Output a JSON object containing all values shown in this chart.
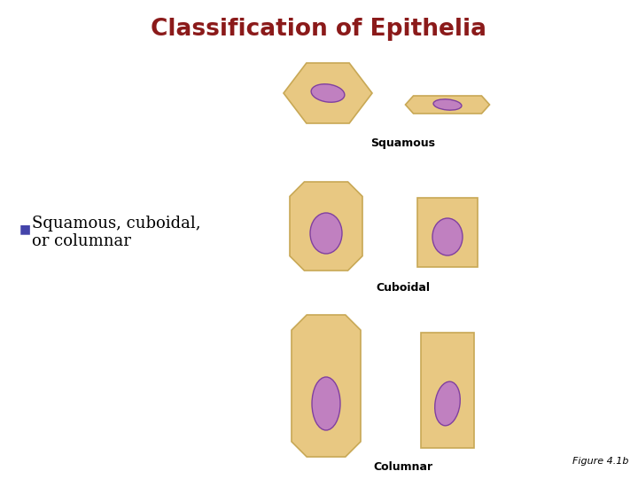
{
  "title": "Classification of Epithelia",
  "title_color": "#8B1A1A",
  "title_fontsize": 19,
  "bg_color": "#FFFFFF",
  "cell_fill": "#E8C882",
  "cell_edge": "#C8A855",
  "cell_lw": 1.2,
  "nucleus_fill": "#C080C0",
  "nucleus_edge": "#8040A0",
  "nucleus_lw": 1.0,
  "bullet_color": "#4444AA",
  "bullet_fontsize": 13,
  "label_squamous": "Squamous",
  "label_cuboidal": "Cuboidal",
  "label_columnar": "Columnar",
  "label_fontsize": 9,
  "figure_label": "Figure 4.1b",
  "figure_label_fontsize": 8
}
